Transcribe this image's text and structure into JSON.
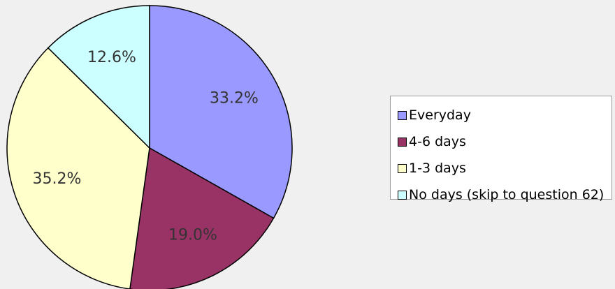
{
  "chart_data": {
    "type": "pie",
    "title": "",
    "start_angle_deg": 0,
    "direction": "clockwise",
    "slices": [
      {
        "label": "Everyday",
        "value": 33.2,
        "display": "33.2%",
        "color": "#9999ff"
      },
      {
        "label": "4-6 days",
        "value": 19.0,
        "display": "19.0%",
        "color": "#993366"
      },
      {
        "label": "1-3 days",
        "value": 35.2,
        "display": "35.2%",
        "color": "#ffffcc"
      },
      {
        "label": "No days (skip to question 62)",
        "value": 12.6,
        "display": "12.6%",
        "color": "#ccffff"
      }
    ],
    "legend_position": "right",
    "label_color": "#333333",
    "outline_color": "#000000"
  }
}
